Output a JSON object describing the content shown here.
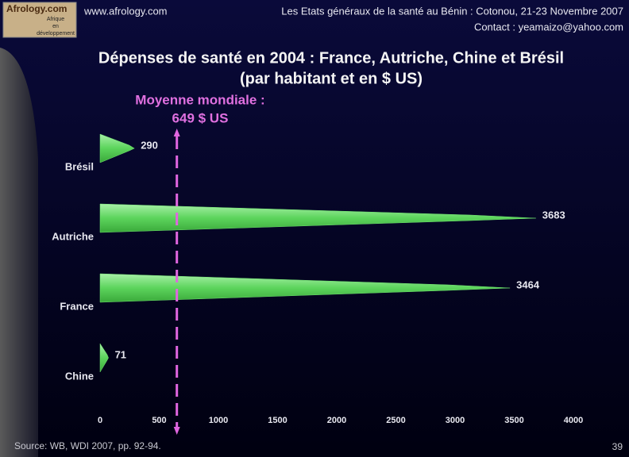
{
  "header": {
    "logo": [
      "Afrology.com",
      "Afrique",
      "en",
      "développement"
    ],
    "site": "www.afrology.com",
    "event": "Les Etats généraux de la santé au Bénin : Cotonou, 21-23 Novembre 2007",
    "contact": "Contact : yeamaizo@yahoo.com"
  },
  "chart_data": {
    "type": "bar",
    "orientation": "horizontal",
    "title": [
      "Dépenses de santé en 2004 : France, Autriche, Chine et Brésil",
      "(par habitant et en $ US)"
    ],
    "annotation": [
      "Moyenne mondiale :",
      "649 $ US"
    ],
    "reference_value": 649,
    "reference_color": "#e066e0",
    "categories": [
      "Brésil",
      "Autriche",
      "France",
      "Chine"
    ],
    "values": [
      290,
      3683,
      3464,
      71
    ],
    "color": "#6ee06e",
    "xlim": [
      0,
      4000
    ],
    "xticks": [
      0,
      500,
      1000,
      1500,
      2000,
      2500,
      3000,
      3500,
      4000
    ]
  },
  "footer": {
    "source": "Source: WB, WDI 2007, pp. 92-94.",
    "page": "39"
  }
}
